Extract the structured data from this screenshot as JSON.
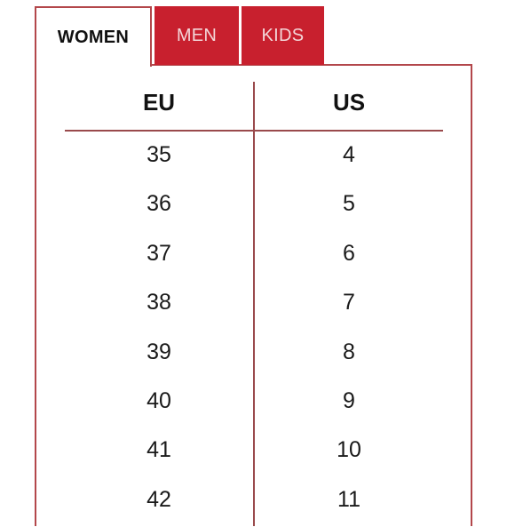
{
  "tabs": [
    {
      "label": "WOMEN",
      "active": true
    },
    {
      "label": "MEN",
      "active": false
    },
    {
      "label": "KIDS",
      "active": false
    }
  ],
  "table": {
    "columns": [
      "EU",
      "US"
    ],
    "rows": [
      [
        "35",
        "4"
      ],
      [
        "36",
        "5"
      ],
      [
        "37",
        "6"
      ],
      [
        "38",
        "7"
      ],
      [
        "39",
        "8"
      ],
      [
        "40",
        "9"
      ],
      [
        "41",
        "10"
      ],
      [
        "42",
        "11"
      ]
    ]
  },
  "colors": {
    "accent": "#c8202e",
    "border": "#b3474b"
  }
}
